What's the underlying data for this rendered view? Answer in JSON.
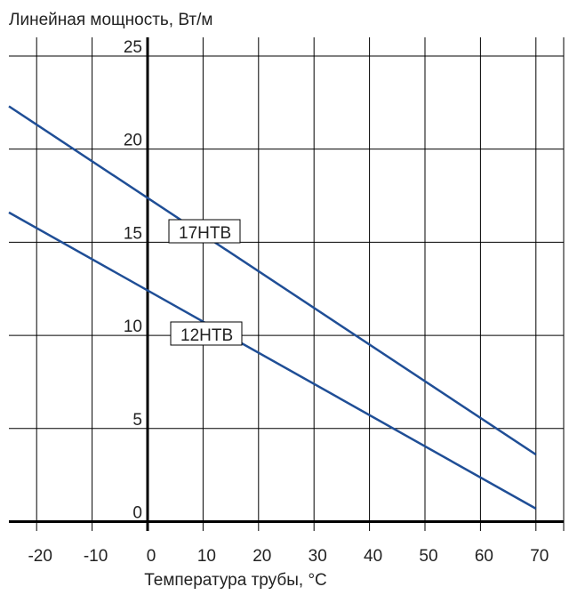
{
  "chart_data": {
    "type": "line",
    "title": "",
    "ylabel": "Линейная мощность, Вт/м",
    "xlabel": "Температура трубы, °C",
    "xlim": [
      -25,
      75
    ],
    "ylim": [
      -0.5,
      26
    ],
    "x_ticks": [
      -20,
      -10,
      0,
      10,
      20,
      30,
      40,
      50,
      60,
      70
    ],
    "x_tick_labels": [
      "-20",
      "-10",
      "0",
      "10",
      "20",
      "30",
      "40",
      "50",
      "60",
      "70"
    ],
    "y_ticks": [
      0,
      5,
      10,
      15,
      20,
      25
    ],
    "y_tick_labels": [
      "0",
      "5",
      "10",
      "15",
      "20",
      "25"
    ],
    "grid": true,
    "series": [
      {
        "name": "17HTB",
        "x": [
          -25,
          70
        ],
        "y": [
          22.3,
          3.6
        ],
        "color": "#1f4e96"
      },
      {
        "name": "12HTB",
        "x": [
          -25,
          70
        ],
        "y": [
          16.6,
          0.7
        ],
        "color": "#1f4e96"
      }
    ],
    "annotations": [
      {
        "text": "17HTB",
        "series": "17HTB"
      },
      {
        "text": "12HTB",
        "series": "12HTB"
      }
    ]
  }
}
